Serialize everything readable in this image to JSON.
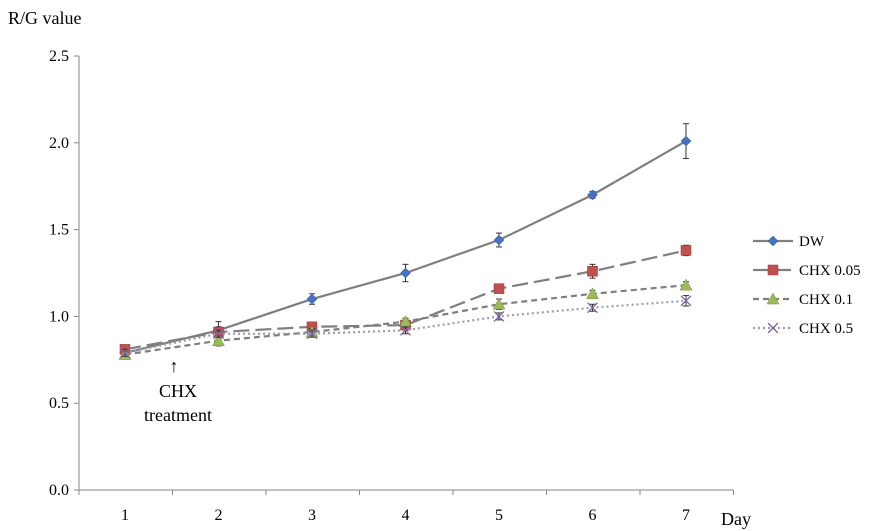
{
  "chart_data": {
    "type": "line",
    "ylabel": "R/G value",
    "xlabel": "Day",
    "x": [
      1,
      2,
      3,
      4,
      5,
      6,
      7
    ],
    "x_tick_labels": [
      "1",
      "2",
      "3",
      "4",
      "5",
      "6",
      "7"
    ],
    "ylim": [
      0.0,
      2.5
    ],
    "y_ticks": [
      0.0,
      0.5,
      1.0,
      1.5,
      2.0,
      2.5
    ],
    "y_tick_labels": [
      "0.0",
      "0.5",
      "1.0",
      "1.5",
      "2.0",
      "2.5"
    ],
    "grid": false,
    "legend_position": "right",
    "series": [
      {
        "name": "DW",
        "values": [
          0.79,
          0.92,
          1.1,
          1.25,
          1.44,
          1.7,
          2.01
        ],
        "errors": [
          0.02,
          0.05,
          0.03,
          0.05,
          0.04,
          0.02,
          0.1
        ],
        "color": "#4472C4",
        "line_color": "#7f7f7f",
        "marker": "diamond",
        "dash": "solid"
      },
      {
        "name": "CHX 0.05",
        "values": [
          0.81,
          0.91,
          0.94,
          0.95,
          1.16,
          1.26,
          1.38
        ],
        "errors": [
          0.02,
          0.03,
          0.02,
          0.03,
          0.02,
          0.04,
          0.03
        ],
        "color": "#C0504D",
        "line_color": "#7f7f7f",
        "marker": "square",
        "dash": "longdash"
      },
      {
        "name": "CHX 0.1",
        "values": [
          0.78,
          0.86,
          0.91,
          0.97,
          1.07,
          1.13,
          1.18
        ],
        "errors": [
          0.02,
          0.03,
          0.02,
          0.02,
          0.03,
          0.02,
          0.02
        ],
        "color": "#9BBB59",
        "line_color": "#7f7f7f",
        "marker": "triangle",
        "dash": "shortdash"
      },
      {
        "name": "CHX 0.5",
        "values": [
          0.79,
          0.9,
          0.9,
          0.92,
          1.0,
          1.05,
          1.09
        ],
        "errors": [
          0.02,
          0.02,
          0.02,
          0.02,
          0.02,
          0.02,
          0.03
        ],
        "color": "#8064A2",
        "line_color": "#9a9aba",
        "marker": "x",
        "dash": "dotted"
      }
    ],
    "annotations": [
      {
        "text_line1": "CHX",
        "text_line2": "treatment",
        "arrow": "↑"
      }
    ]
  }
}
